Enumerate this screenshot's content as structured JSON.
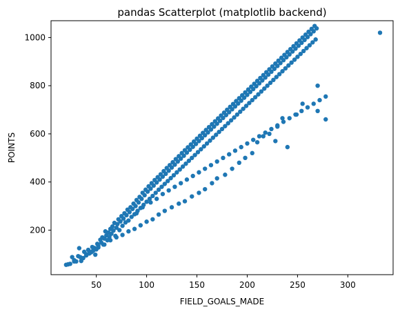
{
  "chart_data": {
    "type": "scatter",
    "title": "pandas Scatterplot (matplotlib backend)",
    "xlabel": "FIELD_GOALS_MADE",
    "ylabel": "POINTS",
    "xlim": [
      5,
      345
    ],
    "ylim": [
      15,
      1070
    ],
    "xticks": [
      50,
      100,
      150,
      200,
      250,
      300
    ],
    "yticks": [
      200,
      400,
      600,
      800,
      1000
    ],
    "grid": false,
    "legend": "none",
    "marker_color": "#1f77b4",
    "series": [
      {
        "points": [
          [
            20,
            56
          ],
          [
            24,
            60
          ],
          [
            26,
            88
          ],
          [
            28,
            75
          ],
          [
            30,
            70
          ],
          [
            32,
            92
          ],
          [
            33,
            125
          ],
          [
            35,
            72
          ],
          [
            37,
            84
          ],
          [
            38,
            110
          ],
          [
            40,
            95
          ],
          [
            42,
            118
          ],
          [
            43,
            103
          ],
          [
            45,
            108
          ],
          [
            46,
            130
          ],
          [
            47,
            115
          ],
          [
            48,
            126
          ],
          [
            49,
            98
          ],
          [
            50,
            120
          ],
          [
            51,
            143
          ],
          [
            52,
            135
          ],
          [
            54,
            160
          ],
          [
            55,
            148
          ],
          [
            56,
            170
          ],
          [
            57,
            140
          ],
          [
            58,
            165
          ],
          [
            59,
            195
          ],
          [
            60,
            178
          ],
          [
            61,
            158
          ],
          [
            62,
            190
          ],
          [
            63,
            172
          ],
          [
            64,
            205
          ],
          [
            65,
            185
          ],
          [
            66,
            215
          ],
          [
            67,
            198
          ],
          [
            68,
            230
          ],
          [
            69,
            176
          ],
          [
            70,
            210
          ],
          [
            71,
            225
          ],
          [
            72,
            245
          ],
          [
            73,
            200
          ],
          [
            74,
            236
          ],
          [
            75,
            258
          ],
          [
            76,
            218
          ],
          [
            77,
            248
          ],
          [
            78,
            270
          ],
          [
            79,
            232
          ],
          [
            80,
            262
          ],
          [
            81,
            285
          ],
          [
            82,
            240
          ],
          [
            83,
            275
          ],
          [
            84,
            295
          ],
          [
            85,
            255
          ],
          [
            86,
            288
          ],
          [
            87,
            310
          ],
          [
            88,
            266
          ],
          [
            89,
            300
          ],
          [
            90,
            325
          ],
          [
            91,
            280
          ],
          [
            92,
            315
          ],
          [
            93,
            338
          ],
          [
            94,
            292
          ],
          [
            95,
            330
          ],
          [
            96,
            355
          ],
          [
            97,
            305
          ],
          [
            98,
            345
          ],
          [
            99,
            368
          ],
          [
            100,
            318
          ],
          [
            101,
            360
          ],
          [
            102,
            382
          ],
          [
            103,
            330
          ],
          [
            104,
            372
          ],
          [
            105,
            395
          ],
          [
            106,
            342
          ],
          [
            107,
            385
          ],
          [
            108,
            408
          ],
          [
            109,
            355
          ],
          [
            110,
            398
          ],
          [
            111,
            420
          ],
          [
            112,
            368
          ],
          [
            113,
            410
          ],
          [
            114,
            432
          ],
          [
            115,
            380
          ],
          [
            116,
            422
          ],
          [
            117,
            445
          ],
          [
            118,
            392
          ],
          [
            119,
            434
          ],
          [
            120,
            458
          ],
          [
            121,
            404
          ],
          [
            122,
            447
          ],
          [
            123,
            470
          ],
          [
            124,
            416
          ],
          [
            125,
            460
          ],
          [
            126,
            482
          ],
          [
            127,
            428
          ],
          [
            128,
            472
          ],
          [
            129,
            495
          ],
          [
            130,
            440
          ],
          [
            131,
            485
          ],
          [
            132,
            507
          ],
          [
            133,
            452
          ],
          [
            134,
            497
          ],
          [
            135,
            520
          ],
          [
            136,
            464
          ],
          [
            137,
            509
          ],
          [
            138,
            532
          ],
          [
            139,
            476
          ],
          [
            140,
            522
          ],
          [
            141,
            544
          ],
          [
            142,
            488
          ],
          [
            143,
            534
          ],
          [
            144,
            556
          ],
          [
            145,
            500
          ],
          [
            146,
            546
          ],
          [
            147,
            568
          ],
          [
            148,
            512
          ],
          [
            149,
            558
          ],
          [
            150,
            580
          ],
          [
            151,
            524
          ],
          [
            152,
            570
          ],
          [
            153,
            592
          ],
          [
            154,
            536
          ],
          [
            155,
            582
          ],
          [
            156,
            604
          ],
          [
            157,
            548
          ],
          [
            158,
            594
          ],
          [
            159,
            616
          ],
          [
            160,
            560
          ],
          [
            161,
            606
          ],
          [
            162,
            628
          ],
          [
            163,
            572
          ],
          [
            164,
            618
          ],
          [
            165,
            640
          ],
          [
            166,
            584
          ],
          [
            167,
            630
          ],
          [
            168,
            652
          ],
          [
            169,
            596
          ],
          [
            170,
            642
          ],
          [
            171,
            664
          ],
          [
            172,
            608
          ],
          [
            173,
            654
          ],
          [
            174,
            676
          ],
          [
            175,
            620
          ],
          [
            176,
            666
          ],
          [
            177,
            688
          ],
          [
            178,
            632
          ],
          [
            179,
            678
          ],
          [
            180,
            700
          ],
          [
            181,
            644
          ],
          [
            182,
            690
          ],
          [
            183,
            712
          ],
          [
            184,
            656
          ],
          [
            185,
            702
          ],
          [
            186,
            724
          ],
          [
            187,
            668
          ],
          [
            188,
            714
          ],
          [
            189,
            736
          ],
          [
            190,
            680
          ],
          [
            191,
            726
          ],
          [
            192,
            748
          ],
          [
            193,
            692
          ],
          [
            194,
            738
          ],
          [
            195,
            760
          ],
          [
            196,
            704
          ],
          [
            197,
            750
          ],
          [
            198,
            772
          ],
          [
            199,
            716
          ],
          [
            200,
            762
          ],
          [
            201,
            784
          ],
          [
            202,
            728
          ],
          [
            203,
            774
          ],
          [
            204,
            796
          ],
          [
            205,
            740
          ],
          [
            206,
            786
          ],
          [
            207,
            808
          ],
          [
            208,
            752
          ],
          [
            209,
            798
          ],
          [
            210,
            820
          ],
          [
            211,
            764
          ],
          [
            212,
            810
          ],
          [
            213,
            832
          ],
          [
            214,
            776
          ],
          [
            215,
            822
          ],
          [
            216,
            844
          ],
          [
            217,
            788
          ],
          [
            218,
            834
          ],
          [
            219,
            856
          ],
          [
            220,
            800
          ],
          [
            221,
            846
          ],
          [
            222,
            868
          ],
          [
            223,
            812
          ],
          [
            224,
            858
          ],
          [
            225,
            880
          ],
          [
            226,
            824
          ],
          [
            227,
            870
          ],
          [
            228,
            892
          ],
          [
            229,
            836
          ],
          [
            230,
            882
          ],
          [
            231,
            904
          ],
          [
            232,
            848
          ],
          [
            233,
            894
          ],
          [
            234,
            916
          ],
          [
            235,
            860
          ],
          [
            236,
            906
          ],
          [
            237,
            928
          ],
          [
            238,
            872
          ],
          [
            239,
            918
          ],
          [
            240,
            940
          ],
          [
            241,
            884
          ],
          [
            242,
            930
          ],
          [
            243,
            952
          ],
          [
            244,
            896
          ],
          [
            245,
            942
          ],
          [
            246,
            964
          ],
          [
            247,
            908
          ],
          [
            248,
            954
          ],
          [
            249,
            976
          ],
          [
            250,
            920
          ],
          [
            251,
            966
          ],
          [
            252,
            988
          ],
          [
            253,
            932
          ],
          [
            254,
            978
          ],
          [
            255,
            1000
          ],
          [
            256,
            944
          ],
          [
            257,
            990
          ],
          [
            258,
            1012
          ],
          [
            259,
            956
          ],
          [
            260,
            1002
          ],
          [
            261,
            1024
          ],
          [
            262,
            968
          ],
          [
            263,
            1014
          ],
          [
            264,
            1036
          ],
          [
            265,
            980
          ],
          [
            266,
            1026
          ],
          [
            267,
            1048
          ],
          [
            268,
            992
          ],
          [
            269,
            1038
          ],
          [
            270,
            800
          ],
          [
            270,
            695
          ],
          [
            278,
            660
          ],
          [
            332,
            1020
          ],
          [
            255,
            725
          ],
          [
            249,
            680
          ],
          [
            240,
            545
          ],
          [
            230,
            630
          ],
          [
            235,
            665
          ],
          [
            228,
            570
          ],
          [
            222,
            600
          ],
          [
            216,
            590
          ],
          [
            210,
            565
          ],
          [
            205,
            520
          ],
          [
            198,
            500
          ],
          [
            192,
            480
          ],
          [
            185,
            455
          ],
          [
            178,
            430
          ],
          [
            170,
            415
          ],
          [
            165,
            395
          ],
          [
            158,
            370
          ],
          [
            152,
            355
          ],
          [
            145,
            340
          ],
          [
            138,
            320
          ],
          [
            132,
            310
          ],
          [
            125,
            295
          ],
          [
            118,
            280
          ],
          [
            112,
            265
          ],
          [
            106,
            245
          ],
          [
            100,
            235
          ],
          [
            94,
            220
          ],
          [
            88,
            205
          ],
          [
            82,
            195
          ],
          [
            76,
            180
          ],
          [
            70,
            170
          ],
          [
            64,
            158
          ],
          [
            58,
            140
          ],
          [
            52,
            128
          ],
          [
            46,
            112
          ],
          [
            40,
            100
          ],
          [
            34,
            88
          ],
          [
            28,
            70
          ],
          [
            22,
            58
          ],
          [
            90,
            270
          ],
          [
            96,
            295
          ],
          [
            104,
            315
          ],
          [
            110,
            330
          ],
          [
            116,
            350
          ],
          [
            122,
            365
          ],
          [
            128,
            380
          ],
          [
            134,
            395
          ],
          [
            140,
            410
          ],
          [
            146,
            425
          ],
          [
            152,
            440
          ],
          [
            158,
            455
          ],
          [
            164,
            470
          ],
          [
            170,
            485
          ],
          [
            176,
            500
          ],
          [
            182,
            515
          ],
          [
            188,
            530
          ],
          [
            194,
            545
          ],
          [
            200,
            560
          ],
          [
            206,
            575
          ],
          [
            212,
            590
          ],
          [
            218,
            605
          ],
          [
            224,
            620
          ],
          [
            230,
            635
          ],
          [
            236,
            650
          ],
          [
            242,
            665
          ],
          [
            248,
            680
          ],
          [
            254,
            695
          ],
          [
            260,
            710
          ],
          [
            266,
            725
          ],
          [
            272,
            740
          ],
          [
            278,
            755
          ]
        ]
      }
    ]
  }
}
